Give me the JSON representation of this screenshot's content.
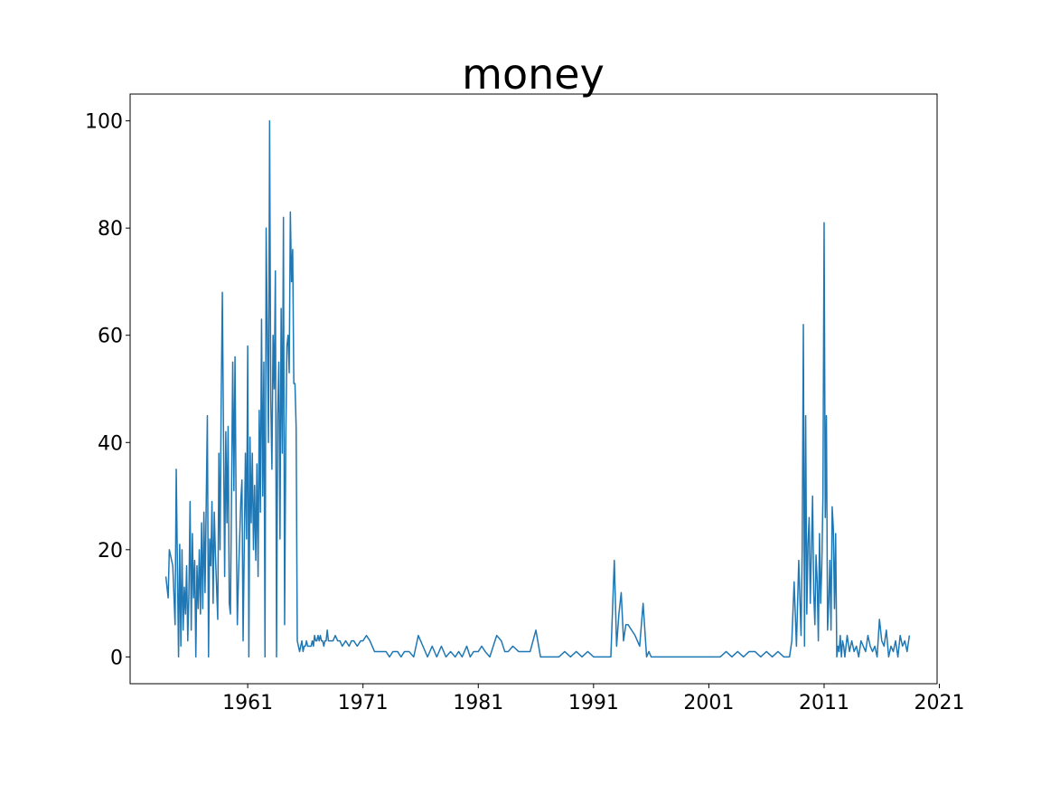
{
  "chart_data": {
    "type": "line",
    "title": "money",
    "xlabel": "",
    "ylabel": "",
    "xlim": [
      1950.8,
      2020.8
    ],
    "ylim": [
      -5,
      105
    ],
    "xticks": [
      1961,
      1971,
      1981,
      1991,
      2001,
      2011,
      2021
    ],
    "xtick_labels": [
      "1961",
      "1971",
      "1981",
      "1991",
      "2001",
      "2011",
      "2021"
    ],
    "yticks": [
      0,
      20,
      40,
      60,
      80,
      100
    ],
    "ytick_labels": [
      "0",
      "20",
      "40",
      "60",
      "80",
      "100"
    ],
    "grid": false,
    "legend": "none",
    "series": [
      {
        "color": "#1f77b4",
        "x": [
          1953.9,
          1954.1,
          1954.2,
          1954.5,
          1954.7,
          1954.8,
          1955.0,
          1955.1,
          1955.2,
          1955.3,
          1955.4,
          1955.5,
          1955.6,
          1955.7,
          1955.8,
          1955.9,
          1956.0,
          1956.1,
          1956.2,
          1956.3,
          1956.4,
          1956.5,
          1956.6,
          1956.7,
          1956.8,
          1956.9,
          1957.0,
          1957.1,
          1957.2,
          1957.3,
          1957.5,
          1957.6,
          1957.7,
          1957.8,
          1957.9,
          1958.0,
          1958.1,
          1958.2,
          1958.4,
          1958.5,
          1958.6,
          1958.7,
          1958.8,
          1959.0,
          1959.1,
          1959.2,
          1959.3,
          1959.4,
          1959.5,
          1959.7,
          1959.8,
          1959.9,
          1960.0,
          1960.1,
          1960.2,
          1960.4,
          1960.5,
          1960.6,
          1960.8,
          1960.9,
          1961.0,
          1961.1,
          1961.2,
          1961.3,
          1961.4,
          1961.5,
          1961.6,
          1961.7,
          1961.8,
          1961.9,
          1962.0,
          1962.1,
          1962.2,
          1962.3,
          1962.4,
          1962.5,
          1962.6,
          1962.8,
          1962.9,
          1963.0,
          1963.1,
          1963.2,
          1963.3,
          1963.4,
          1963.5,
          1963.6,
          1963.7,
          1963.8,
          1963.9,
          1964.0,
          1964.1,
          1964.2,
          1964.3,
          1964.4,
          1964.5,
          1964.6,
          1964.7,
          1964.8,
          1964.9,
          1965.0,
          1965.1,
          1965.2,
          1965.3,
          1965.4,
          1965.5,
          1965.6,
          1965.7,
          1965.8,
          1965.9,
          1966.0,
          1966.1,
          1966.2,
          1966.3,
          1966.4,
          1966.5,
          1966.6,
          1966.7,
          1966.8,
          1966.9,
          1967.0,
          1967.1,
          1967.2,
          1967.3,
          1967.4,
          1967.5,
          1967.6,
          1967.7,
          1967.8,
          1967.9,
          1968.0,
          1968.2,
          1968.4,
          1968.6,
          1968.8,
          1969.0,
          1969.2,
          1969.5,
          1969.8,
          1970.0,
          1970.2,
          1970.5,
          1970.8,
          1971.0,
          1971.3,
          1971.6,
          1972.0,
          1972.3,
          1972.6,
          1973.0,
          1973.3,
          1973.6,
          1974.0,
          1974.3,
          1974.6,
          1975.0,
          1975.4,
          1975.8,
          1976.2,
          1976.6,
          1977.0,
          1977.4,
          1977.8,
          1978.2,
          1978.6,
          1979.0,
          1979.3,
          1979.6,
          1980.0,
          1980.3,
          1980.6,
          1981.0,
          1981.3,
          1981.6,
          1982.0,
          1982.3,
          1982.6,
          1983.0,
          1983.3,
          1983.6,
          1984.0,
          1984.5,
          1985.0,
          1985.5,
          1986.0,
          1986.4,
          1986.8,
          1987.2,
          1987.6,
          1988.0,
          1988.5,
          1989.0,
          1989.5,
          1990.0,
          1990.5,
          1991.0,
          1991.5,
          1992.0,
          1992.5,
          1992.8,
          1993.0,
          1993.2,
          1993.4,
          1993.6,
          1993.8,
          1994.0,
          1994.3,
          1994.6,
          1995.0,
          1995.3,
          1995.6,
          1995.8,
          1996.0,
          1996.5,
          1997.0,
          1998.0,
          1999.0,
          2000.0,
          2001.0,
          2002.0,
          2002.5,
          2003.0,
          2003.5,
          2004.0,
          2004.5,
          2005.0,
          2005.5,
          2006.0,
          2006.5,
          2007.0,
          2007.5,
          2008.0,
          2008.2,
          2008.4,
          2008.6,
          2008.8,
          2009.0,
          2009.1,
          2009.2,
          2009.3,
          2009.4,
          2009.5,
          2009.6,
          2009.7,
          2009.8,
          2009.9,
          2010.0,
          2010.1,
          2010.2,
          2010.3,
          2010.4,
          2010.5,
          2010.6,
          2010.7,
          2010.8,
          2010.9,
          2011.0,
          2011.1,
          2011.2,
          2011.3,
          2011.4,
          2011.5,
          2011.6,
          2011.7,
          2011.8,
          2011.9,
          2012.0,
          2012.1,
          2012.2,
          2012.3,
          2012.4,
          2012.5,
          2012.6,
          2012.7,
          2012.8,
          2013.0,
          2013.2,
          2013.4,
          2013.6,
          2013.8,
          2014.0,
          2014.2,
          2014.4,
          2014.6,
          2014.8,
          2015.0,
          2015.2,
          2015.4,
          2015.6,
          2015.8,
          2016.0,
          2016.2,
          2016.4,
          2016.6,
          2016.8,
          2017.0,
          2017.2,
          2017.4,
          2017.6,
          2017.8,
          2018.0,
          2018.2,
          2018.4
        ],
        "y": [
          15,
          11,
          20,
          17,
          6,
          35,
          0,
          21,
          2,
          20,
          5,
          13,
          8,
          17,
          3,
          12,
          29,
          5,
          23,
          11,
          18,
          0,
          17,
          9,
          20,
          8,
          25,
          9,
          27,
          12,
          45,
          0,
          22,
          17,
          29,
          10,
          27,
          19,
          7,
          38,
          20,
          48,
          68,
          15,
          42,
          25,
          43,
          10,
          8,
          55,
          31,
          56,
          26,
          6,
          15,
          29,
          33,
          3,
          38,
          22,
          58,
          0,
          41,
          25,
          38,
          20,
          32,
          18,
          36,
          15,
          46,
          27,
          63,
          30,
          55,
          0,
          80,
          40,
          100,
          48,
          35,
          60,
          50,
          72,
          0,
          45,
          55,
          22,
          65,
          38,
          82,
          6,
          40,
          58,
          60,
          53,
          83,
          70,
          76,
          51,
          51,
          43,
          3,
          2,
          1,
          2,
          3,
          1,
          2,
          2,
          3,
          2,
          2,
          2,
          2,
          3,
          2,
          4,
          3,
          3,
          4,
          3,
          4,
          3,
          3,
          2,
          3,
          3,
          5,
          3,
          3,
          3,
          4,
          3,
          3,
          2,
          3,
          2,
          3,
          3,
          2,
          3,
          3,
          4,
          3,
          1,
          1,
          1,
          1,
          0,
          1,
          1,
          0,
          1,
          1,
          0,
          4,
          2,
          0,
          2,
          0,
          2,
          0,
          1,
          0,
          1,
          0,
          2,
          0,
          1,
          1,
          2,
          1,
          0,
          2,
          4,
          3,
          1,
          1,
          2,
          1,
          1,
          1,
          5,
          0,
          0,
          0,
          0,
          0,
          1,
          0,
          1,
          0,
          1,
          0,
          0,
          0,
          0,
          18,
          2,
          8,
          12,
          3,
          6,
          6,
          5,
          4,
          2,
          10,
          0,
          1,
          0,
          0,
          0,
          0,
          0,
          0,
          0,
          0,
          1,
          0,
          1,
          0,
          1,
          1,
          0,
          1,
          0,
          1,
          0,
          0,
          3,
          14,
          2,
          18,
          4,
          20,
          62,
          2,
          45,
          8,
          21,
          26,
          10,
          20,
          30,
          12,
          6,
          19,
          14,
          3,
          23,
          10,
          17,
          30,
          81,
          26,
          45,
          5,
          10,
          18,
          5,
          28,
          24,
          9,
          23,
          0,
          2,
          1,
          4,
          0,
          3,
          2,
          0,
          4,
          1,
          3,
          1,
          2,
          0,
          3,
          2,
          1,
          4,
          2,
          1,
          2,
          0,
          7,
          3,
          2,
          5,
          0,
          2,
          1,
          3,
          0,
          4,
          2,
          3,
          1,
          4
        ]
      }
    ]
  }
}
